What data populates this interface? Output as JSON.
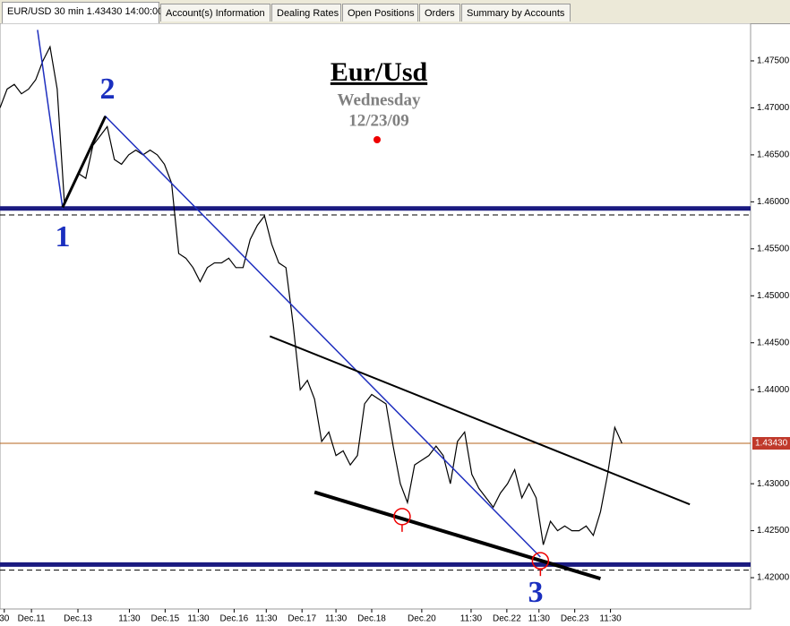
{
  "tabs": [
    "EUR/USD 30 min 1.43430 14:00:00",
    "Account(s) Information",
    "Dealing Rates",
    "Open Positions",
    "Orders",
    "Summary by Accounts"
  ],
  "chart_data": {
    "type": "line",
    "title": "Eur/Usd",
    "subtitle": "Wednesday",
    "date": "12/23/09",
    "annotations": [
      "1",
      "2",
      "3"
    ],
    "series": [
      {
        "name": "EUR/USD",
        "color": "#000000",
        "values": [
          1.47,
          1.472,
          1.4725,
          1.4715,
          1.472,
          1.473,
          1.475,
          1.4765,
          1.472,
          1.46,
          1.4615,
          1.463,
          1.4625,
          1.466,
          1.467,
          1.468,
          1.4645,
          1.464,
          1.465,
          1.4655,
          1.465,
          1.4655,
          1.465,
          1.464,
          1.462,
          1.4545,
          1.454,
          1.453,
          1.4515,
          1.453,
          1.4535,
          1.4535,
          1.454,
          1.453,
          1.453,
          1.456,
          1.4575,
          1.4585,
          1.4555,
          1.4535,
          1.453,
          1.447,
          1.44,
          1.441,
          1.439,
          1.4345,
          1.4355,
          1.433,
          1.4335,
          1.432,
          1.433,
          1.4385,
          1.4395,
          1.439,
          1.4385,
          1.434,
          1.43,
          1.428,
          1.432,
          1.4325,
          1.433,
          1.434,
          1.433,
          1.43,
          1.4345,
          1.4355,
          1.431,
          1.4295,
          1.4285,
          1.4275,
          1.429,
          1.43,
          1.4315,
          1.4285,
          1.43,
          1.4285,
          1.4235,
          1.426,
          1.425,
          1.4255,
          1.425,
          1.425,
          1.4255,
          1.4245,
          1.427,
          1.431,
          1.436,
          1.4343
        ]
      }
    ],
    "last_price": {
      "value": 1.4343,
      "label": "1.43430",
      "color": "#b5651d"
    },
    "xlim": [
      0,
      105
    ],
    "ylim": [
      1.41667,
      1.479
    ],
    "xticks": [
      {
        "value": 0.6,
        "label": "30"
      },
      {
        "value": 4.4,
        "label": "Dec.11"
      },
      {
        "value": 10.9,
        "label": "Dec.13"
      },
      {
        "value": 18.1,
        "label": "11:30"
      },
      {
        "value": 23.1,
        "label": "Dec.15"
      },
      {
        "value": 27.75,
        "label": "11:30"
      },
      {
        "value": 32.75,
        "label": "Dec.16"
      },
      {
        "value": 37.25,
        "label": "11:30"
      },
      {
        "value": 42.25,
        "label": "Dec.17"
      },
      {
        "value": 47,
        "label": "11:30"
      },
      {
        "value": 52,
        "label": "Dec.18"
      },
      {
        "value": 59,
        "label": "Dec.20"
      },
      {
        "value": 65.9,
        "label": "11:30"
      },
      {
        "value": 70.9,
        "label": "Dec.22"
      },
      {
        "value": 75.4,
        "label": "11:30"
      },
      {
        "value": 80.4,
        "label": "Dec.23"
      },
      {
        "value": 85.4,
        "label": "11:30"
      }
    ],
    "yticks": [
      {
        "value": 1.475,
        "label": "1.47500"
      },
      {
        "value": 1.47,
        "label": "1.47000"
      },
      {
        "value": 1.465,
        "label": "1.46500"
      },
      {
        "value": 1.46,
        "label": "1.46000"
      },
      {
        "value": 1.455,
        "label": "1.45500"
      },
      {
        "value": 1.45,
        "label": "1.45000"
      },
      {
        "value": 1.445,
        "label": "1.44500"
      },
      {
        "value": 1.44,
        "label": "1.44000"
      },
      {
        "value": 1.43,
        "label": "1.43000"
      },
      {
        "value": 1.425,
        "label": "1.42500"
      },
      {
        "value": 1.42,
        "label": "1.42000"
      }
    ],
    "hlines": [
      {
        "value": 1.4593,
        "color": "#1a1a80",
        "width": 5
      },
      {
        "value": 1.4586,
        "color": "#000000",
        "width": 1,
        "dashed": true
      },
      {
        "value": 1.4214,
        "color": "#1a1a80",
        "width": 5
      },
      {
        "value": 1.4208,
        "color": "#000000",
        "width": 1,
        "dashed": true
      }
    ],
    "trendlines": [
      {
        "points": [
          [
            5.25,
            1.4783
          ],
          [
            8.75,
            1.4594
          ],
          [
            14.75,
            1.4691
          ],
          [
            75.6,
            1.4222
          ]
        ],
        "color": "#1f2fbf",
        "width": 1.5
      },
      {
        "points": [
          [
            8.75,
            1.4594
          ],
          [
            14.75,
            1.4691
          ]
        ],
        "color": "#000000",
        "width": 3
      },
      {
        "points": [
          [
            37.75,
            1.4457
          ],
          [
            96.5,
            1.4278
          ]
        ],
        "color": "#000000",
        "width": 2
      },
      {
        "points": [
          [
            44,
            1.4291
          ],
          [
            84,
            1.4199
          ]
        ],
        "color": "#000000",
        "width": 4
      }
    ],
    "circles": [
      [
        56.25,
        1.4265
      ],
      [
        75.6,
        1.4218
      ]
    ]
  }
}
